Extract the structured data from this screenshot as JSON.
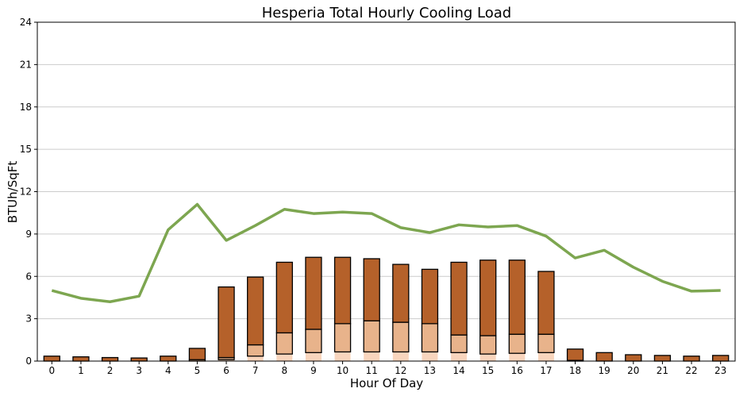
{
  "chart_data": {
    "type": "bar",
    "title": "Hesperia Total Hourly Cooling Load",
    "xlabel": "Hour Of Day",
    "ylabel": "BTUh/SqFt",
    "ylim": [
      0,
      24
    ],
    "yticks": [
      "0",
      "3",
      "6",
      "9",
      "12",
      "15",
      "18",
      "21",
      "24"
    ],
    "categories": [
      "0",
      "1",
      "2",
      "3",
      "4",
      "5",
      "6",
      "7",
      "8",
      "9",
      "10",
      "11",
      "12",
      "13",
      "14",
      "15",
      "16",
      "17",
      "18",
      "19",
      "20",
      "21",
      "22",
      "23"
    ],
    "grid": "horizontal",
    "stacked": true,
    "series": [
      {
        "color": "#f9d5bd",
        "values": [
          0,
          0,
          0,
          0,
          0,
          0,
          0.1,
          0.35,
          0.5,
          0.6,
          0.65,
          0.65,
          0.65,
          0.65,
          0.6,
          0.5,
          0.55,
          0.6,
          0,
          0,
          0,
          0,
          0,
          0
        ]
      },
      {
        "color": "#e8b38b",
        "values": [
          0,
          0,
          0,
          0,
          0,
          0.1,
          0.15,
          0.8,
          1.5,
          1.65,
          2.0,
          2.2,
          2.1,
          2.0,
          1.25,
          1.3,
          1.35,
          1.3,
          0.05,
          0,
          0,
          0,
          0,
          0
        ]
      },
      {
        "color": "#b5612a",
        "values": [
          0.35,
          0.3,
          0.25,
          0.22,
          0.35,
          0.8,
          5.0,
          4.8,
          5.0,
          5.1,
          4.7,
          4.4,
          4.1,
          3.85,
          5.15,
          5.35,
          5.25,
          4.45,
          0.8,
          0.6,
          0.45,
          0.4,
          0.35,
          0.4
        ]
      }
    ],
    "line": {
      "color": "#7da650",
      "values": [
        5.0,
        4.45,
        4.2,
        4.6,
        9.3,
        11.1,
        8.55,
        9.6,
        10.75,
        10.45,
        10.55,
        10.45,
        9.45,
        9.1,
        9.65,
        9.5,
        9.6,
        8.85,
        7.3,
        7.85,
        6.65,
        5.65,
        4.95,
        5.0
      ]
    }
  }
}
